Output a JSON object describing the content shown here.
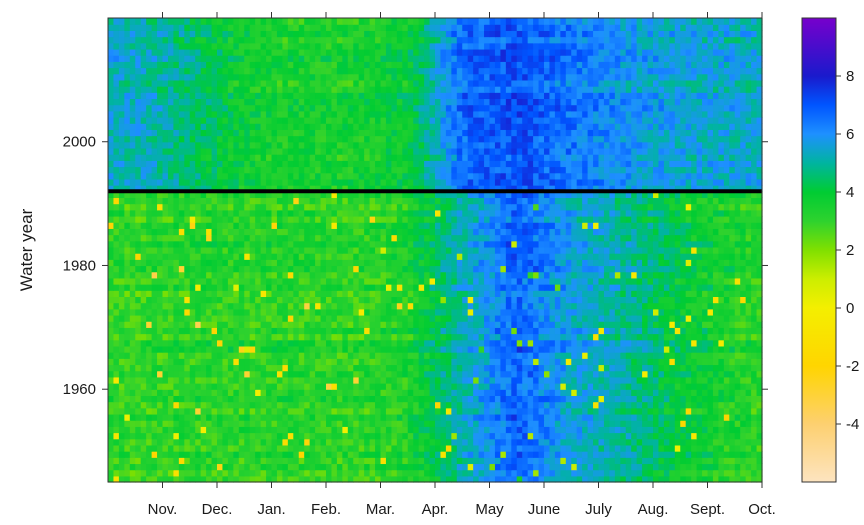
{
  "chart_data": {
    "type": "heatmap",
    "title": "",
    "xlabel": "",
    "ylabel": "Water year",
    "x_tick_labels": [
      "Nov.",
      "Dec.",
      "Jan.",
      "Feb.",
      "Mar.",
      "Apr.",
      "May",
      "June",
      "July",
      "Aug.",
      "Sept.",
      "Oct."
    ],
    "y_ticks": [
      1960,
      1980,
      2000
    ],
    "y_range": [
      1945,
      2020
    ],
    "divider_year": 1992,
    "colorbar": {
      "ticks": [
        -4,
        -2,
        0,
        2,
        4,
        6,
        8
      ],
      "range": [
        -6,
        10
      ],
      "stops": [
        {
          "value": -6,
          "color": "#fde4c0"
        },
        {
          "value": -4,
          "color": "#fdd070"
        },
        {
          "value": -2,
          "color": "#ffd500"
        },
        {
          "value": 0,
          "color": "#f4ef00"
        },
        {
          "value": 1,
          "color": "#ccee00"
        },
        {
          "value": 2,
          "color": "#80e000"
        },
        {
          "value": 3,
          "color": "#2ed22e"
        },
        {
          "value": 4,
          "color": "#00cc33"
        },
        {
          "value": 5,
          "color": "#00b4a0"
        },
        {
          "value": 6,
          "color": "#1e90ff"
        },
        {
          "value": 7,
          "color": "#0055ff"
        },
        {
          "value": 8,
          "color": "#1a1acc"
        },
        {
          "value": 10,
          "color": "#7700cc"
        }
      ]
    },
    "pattern_summary": {
      "months": [
        "Oct",
        "Nov",
        "Dec",
        "Jan",
        "Feb",
        "Mar",
        "Apr",
        "May",
        "Jun",
        "Jul",
        "Aug",
        "Sep"
      ],
      "before_1992_typical": [
        3.0,
        3.2,
        3.2,
        3.2,
        3.1,
        3.4,
        5.2,
        6.8,
        5.6,
        5.0,
        4.0,
        3.4
      ],
      "after_1992_typical": [
        5.3,
        4.6,
        3.6,
        3.4,
        3.4,
        3.8,
        6.6,
        7.0,
        6.4,
        5.8,
        5.5,
        5.4
      ]
    }
  }
}
